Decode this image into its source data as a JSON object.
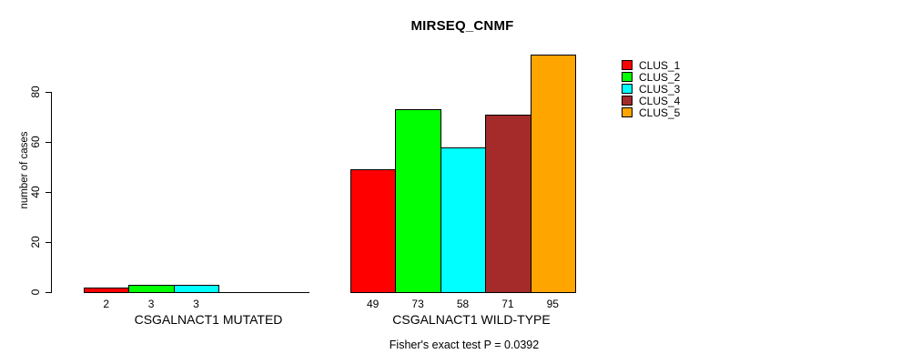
{
  "chart_data": {
    "type": "bar",
    "title": "MIRSEQ_CNMF",
    "ylabel": "number of cases",
    "ylim": [
      0,
      95
    ],
    "yticks": [
      0,
      20,
      40,
      60,
      80
    ],
    "grid": false,
    "legend_position": "top-right",
    "background_color": "#ffffff",
    "axis_color": "#000000",
    "clusters": [
      {
        "name": "CLUS_1",
        "color": "#FF0000"
      },
      {
        "name": "CLUS_2",
        "color": "#00FF00"
      },
      {
        "name": "CLUS_3",
        "color": "#00FFFF"
      },
      {
        "name": "CLUS_4",
        "color": "#A52A2A"
      },
      {
        "name": "CLUS_5",
        "color": "#FFA500"
      }
    ],
    "groups": [
      {
        "label": "CSGALNACT1 MUTATED",
        "values": [
          2,
          3,
          3,
          0,
          0
        ],
        "bar_labels": [
          "2",
          "3",
          "3",
          "",
          ""
        ]
      },
      {
        "label": "CSGALNACT1 WILD-TYPE",
        "values": [
          49,
          73,
          58,
          71,
          95
        ],
        "bar_labels": [
          "49",
          "73",
          "58",
          "71",
          "95"
        ]
      }
    ],
    "footnote": "Fisher's exact test P = 0.0392"
  }
}
